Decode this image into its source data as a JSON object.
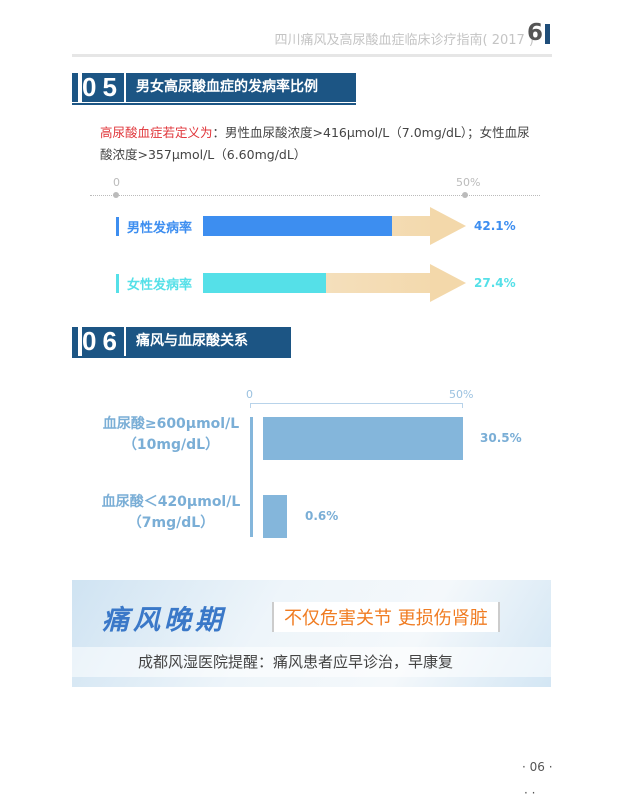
{
  "header": {
    "running_title": "四川痛风及高尿酸血症临床诊疗指南( 2017 )",
    "page_number": "6"
  },
  "section5": {
    "number": "05",
    "title": "男女高尿酸血症的发病率比例",
    "definition_label": "高尿酸血症若定义为",
    "definition_text": "：男性血尿酸浓度>416μmol/L（7.0mg/dL）；女性血尿酸浓度>357μmol/L（6.60mg/dL）"
  },
  "section6": {
    "number": "06",
    "title": "痛风与血尿酸关系"
  },
  "chart_data": [
    {
      "type": "bar",
      "orientation": "horizontal",
      "xlim": [
        0,
        50
      ],
      "ticks": [
        "0",
        "50%"
      ],
      "categories": [
        "男性发病率",
        "女性发病率"
      ],
      "values": [
        42.1,
        27.4
      ],
      "value_labels": [
        "42.1%",
        "27.4%"
      ],
      "colors": [
        "#3d8ef0",
        "#55e0e8"
      ],
      "track_color": "#f3d9ad"
    },
    {
      "type": "bar",
      "orientation": "horizontal",
      "xlim": [
        0,
        50
      ],
      "ticks": [
        "0",
        "50%"
      ],
      "categories": [
        [
          "血尿酸≥600μmol/L",
          "（10mg/dL）"
        ],
        [
          "血尿酸＜420μmol/L",
          "（7mg/dL）"
        ]
      ],
      "values": [
        30.5,
        0.6
      ],
      "value_labels": [
        "30.5%",
        "0.6%"
      ],
      "color": "#84b6db"
    }
  ],
  "banner": {
    "headline": "痛风晚期",
    "tagline": "不仅危害关节  更损伤肾脏",
    "reminder": "成都风湿医院提醒：痛风患者应早诊治，早康复"
  },
  "footer": {
    "page": "· 06 ·",
    "dots": "·  ·"
  }
}
